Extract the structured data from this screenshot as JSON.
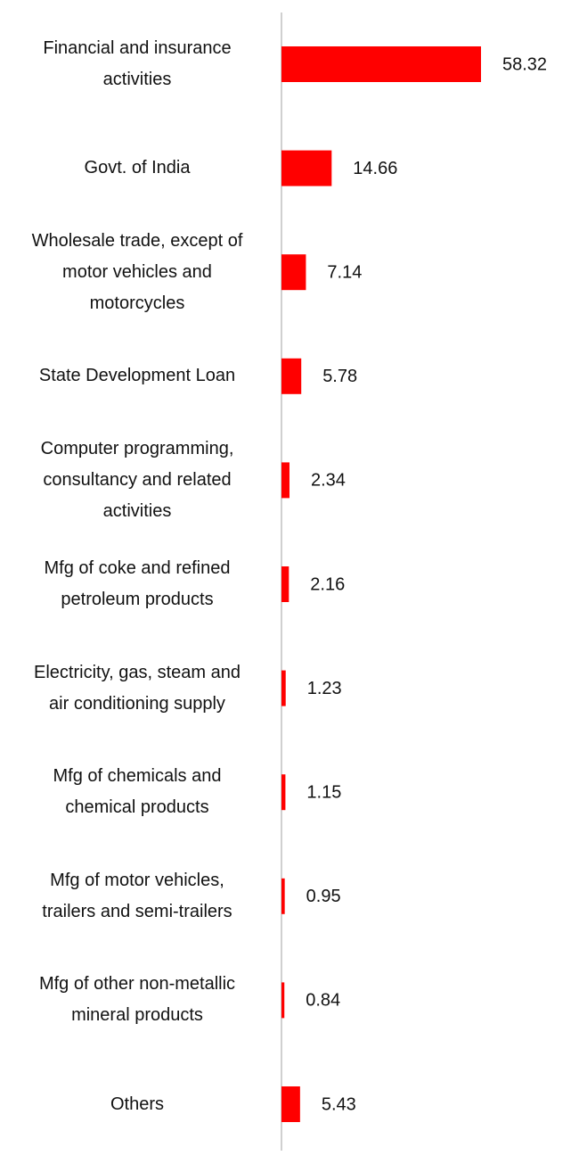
{
  "chart_data": {
    "type": "bar",
    "orientation": "horizontal",
    "categories": [
      "Financial and insurance\nactivities",
      "Govt. of India",
      "Wholesale trade, except of\nmotor vehicles and\nmotorcycles",
      "State Development Loan",
      "Computer programming,\nconsultancy and related\nactivities",
      "Mfg of coke and refined\npetroleum products",
      "Electricity, gas, steam and\nair conditioning supply",
      "Mfg of chemicals and\nchemical products",
      "Mfg of motor vehicles,\ntrailers and semi-trailers",
      "Mfg of other non-metallic\nmineral products",
      "Others"
    ],
    "values": [
      58.32,
      14.66,
      7.14,
      5.78,
      2.34,
      2.16,
      1.23,
      1.15,
      0.95,
      0.84,
      5.43
    ],
    "color": "#ff0000"
  }
}
